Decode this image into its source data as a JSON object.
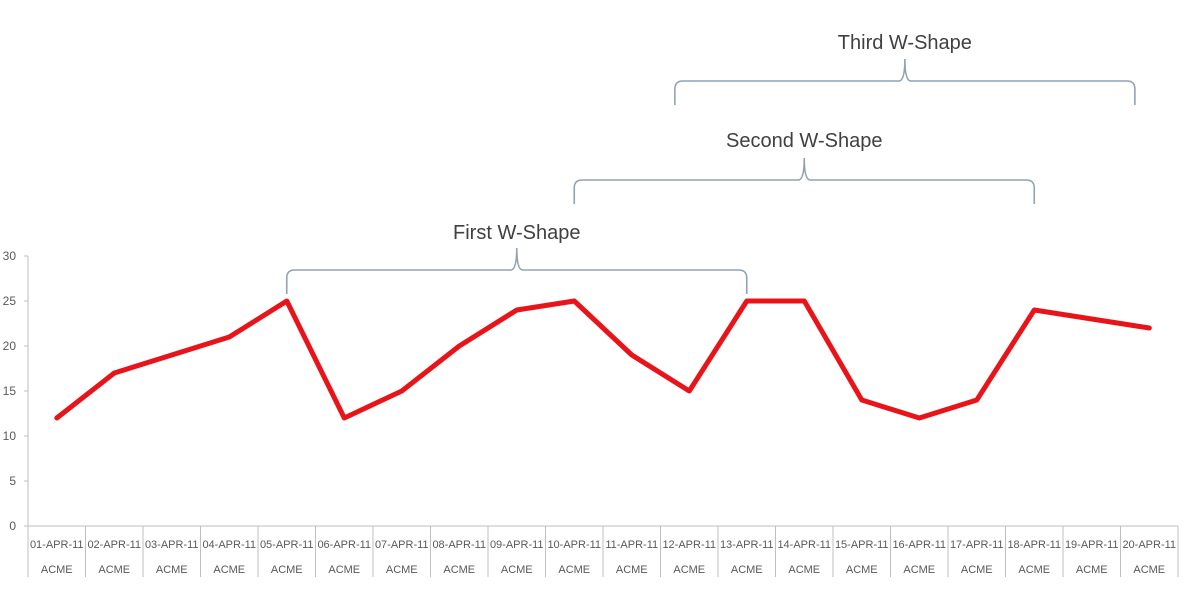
{
  "chart_data": {
    "type": "line",
    "title": "",
    "xlabel": "",
    "ylabel": "",
    "ylim": [
      0,
      30
    ],
    "yticks": [
      0,
      5,
      10,
      15,
      20,
      25,
      30
    ],
    "grid": false,
    "legend": null,
    "categories": [
      "01-APR-11",
      "02-APR-11",
      "03-APR-11",
      "04-APR-11",
      "05-APR-11",
      "06-APR-11",
      "07-APR-11",
      "08-APR-11",
      "09-APR-11",
      "10-APR-11",
      "11-APR-11",
      "12-APR-11",
      "13-APR-11",
      "14-APR-11",
      "15-APR-11",
      "16-APR-11",
      "17-APR-11",
      "18-APR-11",
      "19-APR-11",
      "20-APR-11"
    ],
    "category_group": [
      "ACME",
      "ACME",
      "ACME",
      "ACME",
      "ACME",
      "ACME",
      "ACME",
      "ACME",
      "ACME",
      "ACME",
      "ACME",
      "ACME",
      "ACME",
      "ACME",
      "ACME",
      "ACME",
      "ACME",
      "ACME",
      "ACME",
      "ACME"
    ],
    "series": [
      {
        "name": "ACME",
        "color": "#e8141a",
        "values": [
          12,
          17,
          19,
          21,
          25,
          12,
          15,
          20,
          24,
          25,
          19,
          15,
          25,
          25,
          14,
          12,
          14,
          24,
          23,
          22
        ]
      }
    ],
    "annotations": [
      {
        "label": "First W-Shape",
        "from": "05-APR-11",
        "to": "13-APR-11",
        "from_index": 4,
        "to_index": 12,
        "level": 1
      },
      {
        "label": "Second W-Shape",
        "from": "10-APR-11",
        "to": "18-APR-11",
        "from_index": 9,
        "to_index": 17,
        "level": 2
      },
      {
        "label": "Third W-Shape",
        "from": "11-APR-11",
        "to": "19-APR-11",
        "from_index": 10.75,
        "to_index": 18.75,
        "level": 3
      }
    ]
  },
  "colors": {
    "series": "#e8141a",
    "bracket": "#8fa3b0",
    "axis": "#bfbfbf",
    "text": "#595959",
    "annotation_text": "#404040"
  }
}
